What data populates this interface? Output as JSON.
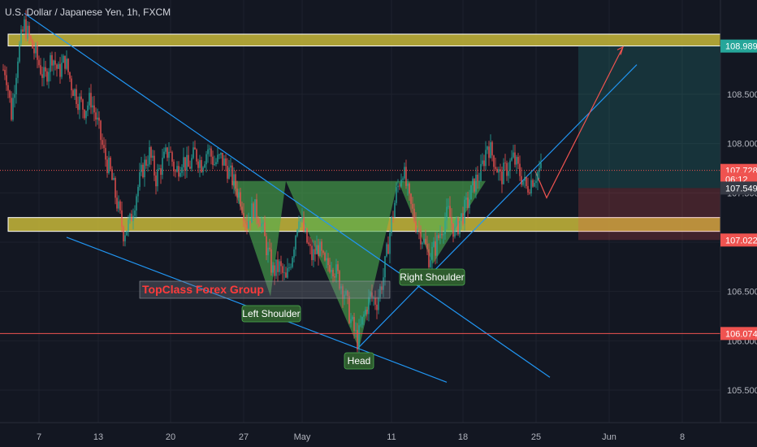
{
  "title": "U.S. Dollar / Japanese Yen, 1h, FXCM",
  "chart_data": {
    "type": "candlestick",
    "title": "U.S. Dollar / Japanese Yen, 1h, FXCM",
    "symbol": "U.S. Dollar / Japanese Yen",
    "interval": "1h",
    "source": "FXCM",
    "x_ticks": [
      "7",
      "13",
      "20",
      "27",
      "May",
      "11",
      "18",
      "25",
      "Jun",
      "8"
    ],
    "y_ticks": [
      "108.500",
      "108.000",
      "107.500",
      "106.500",
      "106.000",
      "105.500"
    ],
    "ylim": [
      105.2,
      109.32
    ],
    "grid": true,
    "price_tags": [
      {
        "value": "108.989",
        "price": 108.989,
        "color": "#26a69a"
      },
      {
        "value": "107.728",
        "price": 107.728,
        "color": "#ef5350"
      },
      {
        "value": "06:12",
        "price": 107.64,
        "color": "#ef5350"
      },
      {
        "value": "107.549",
        "price": 107.549,
        "color": "#363a45"
      },
      {
        "value": "107.022",
        "price": 107.022,
        "color": "#ef5350"
      },
      {
        "value": "106.074",
        "price": 106.074,
        "color": "#ef5350"
      }
    ],
    "horizontal_lines": [
      {
        "price": 107.728,
        "style": "dotted",
        "color": "#ef5350"
      },
      {
        "price": 106.074,
        "style": "solid",
        "color": "#ef5350"
      }
    ],
    "zones": [
      {
        "from": 109.11,
        "to": 108.99,
        "color": "#c8b93a"
      },
      {
        "from": 107.25,
        "to": 107.11,
        "color": "#c8b93a"
      }
    ],
    "position": {
      "entry": 107.549,
      "target": 108.989,
      "stop": 107.022
    },
    "pattern_labels": [
      "Left Shoulder",
      "Head",
      "Right Shoulder"
    ],
    "brand_label": "TopClass Forex Group",
    "price_path": [
      [
        7,
        108.75
      ],
      [
        14,
        108.3
      ],
      [
        22,
        108.9
      ],
      [
        30,
        109.2
      ],
      [
        38,
        109.02
      ],
      [
        46,
        108.85
      ],
      [
        55,
        108.65
      ],
      [
        64,
        108.9
      ],
      [
        72,
        108.72
      ],
      [
        80,
        108.85
      ],
      [
        88,
        108.6
      ],
      [
        96,
        108.45
      ],
      [
        104,
        108.35
      ],
      [
        112,
        108.45
      ],
      [
        120,
        108.2
      ],
      [
        128,
        107.9
      ],
      [
        136,
        107.7
      ],
      [
        144,
        107.4
      ],
      [
        152,
        107.1
      ],
      [
        160,
        107.2
      ],
      [
        168,
        107.5
      ],
      [
        176,
        107.75
      ],
      [
        184,
        107.9
      ],
      [
        192,
        107.65
      ],
      [
        200,
        107.8
      ],
      [
        208,
        107.95
      ],
      [
        216,
        107.7
      ],
      [
        224,
        107.85
      ],
      [
        232,
        107.75
      ],
      [
        240,
        107.9
      ],
      [
        248,
        107.8
      ],
      [
        256,
        107.95
      ],
      [
        264,
        107.8
      ],
      [
        272,
        107.85
      ],
      [
        280,
        107.75
      ],
      [
        288,
        107.6
      ],
      [
        296,
        107.45
      ],
      [
        304,
        107.2
      ],
      [
        312,
        107.35
      ],
      [
        320,
        107.25
      ],
      [
        328,
        106.95
      ],
      [
        336,
        106.7
      ],
      [
        344,
        106.75
      ],
      [
        352,
        106.6
      ],
      [
        360,
        106.9
      ],
      [
        368,
        107.3
      ],
      [
        376,
        107.05
      ],
      [
        384,
        106.85
      ],
      [
        392,
        106.95
      ],
      [
        400,
        106.75
      ],
      [
        408,
        106.8
      ],
      [
        416,
        106.65
      ],
      [
        424,
        106.5
      ],
      [
        432,
        106.2
      ],
      [
        440,
        106.0
      ],
      [
        448,
        106.25
      ],
      [
        456,
        106.45
      ],
      [
        464,
        106.4
      ],
      [
        472,
        106.65
      ],
      [
        480,
        107.1
      ],
      [
        488,
        107.5
      ],
      [
        496,
        107.75
      ],
      [
        504,
        107.4
      ],
      [
        512,
        107.2
      ],
      [
        520,
        107.05
      ],
      [
        528,
        106.85
      ],
      [
        536,
        106.95
      ],
      [
        544,
        107.15
      ],
      [
        552,
        107.3
      ],
      [
        560,
        107.1
      ],
      [
        568,
        107.25
      ],
      [
        576,
        107.4
      ],
      [
        584,
        107.6
      ],
      [
        592,
        107.7
      ],
      [
        600,
        108.0
      ],
      [
        608,
        107.85
      ],
      [
        616,
        107.65
      ],
      [
        624,
        107.75
      ],
      [
        632,
        107.85
      ],
      [
        640,
        107.7
      ],
      [
        648,
        107.55
      ],
      [
        656,
        107.65
      ],
      [
        664,
        107.73
      ]
    ]
  }
}
